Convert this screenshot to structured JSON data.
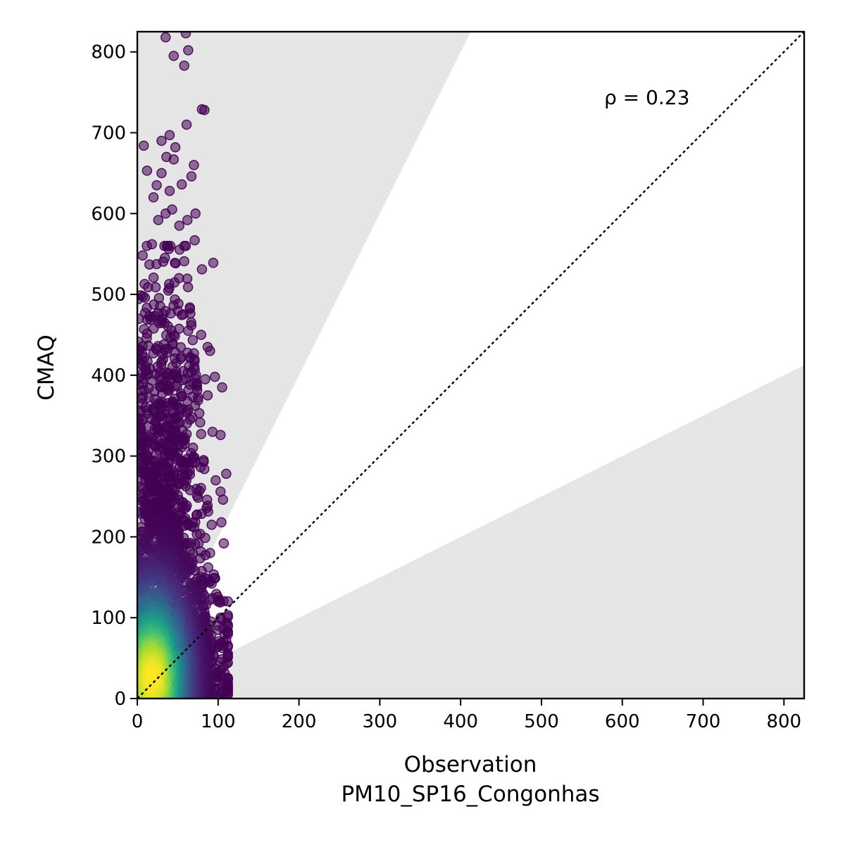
{
  "chart_data": {
    "type": "scatter",
    "xlabel": "Observation\nPM10_SP16_Congonhas",
    "xlabel_lines": [
      "Observation",
      "PM10_SP16_Congonhas"
    ],
    "ylabel": "CMAQ",
    "xlim": [
      0,
      825
    ],
    "ylim": [
      0,
      825
    ],
    "x_ticks": [
      0,
      100,
      200,
      300,
      400,
      500,
      600,
      700,
      800
    ],
    "y_ticks": [
      0,
      100,
      200,
      300,
      400,
      500,
      600,
      700,
      800
    ],
    "x_tick_labels": [
      "0",
      "100",
      "200",
      "300",
      "400",
      "500",
      "600",
      "700",
      "800"
    ],
    "y_tick_labels": [
      "0",
      "100",
      "200",
      "300",
      "400",
      "500",
      "600",
      "700",
      "800"
    ],
    "annotation": "ρ = 0.23",
    "grid": false,
    "colormap": "viridis",
    "reference_line": {
      "slope": 1,
      "style": "dotted",
      "color": "#000000"
    },
    "shaded_regions": [
      {
        "description": "model/observation > 2",
        "lower_slope": 2,
        "color": "#e5e5e5"
      },
      {
        "description": "model/observation < 0.5",
        "upper_slope": 0.5,
        "color": "#e5e5e5"
      }
    ],
    "outlier_points": [
      [
        35,
        818
      ],
      [
        60,
        823
      ],
      [
        63,
        802
      ],
      [
        45,
        795
      ],
      [
        58,
        783
      ],
      [
        80,
        729
      ],
      [
        83,
        728
      ],
      [
        61,
        710
      ],
      [
        8,
        684
      ],
      [
        47,
        682
      ],
      [
        30,
        690
      ],
      [
        40,
        697
      ],
      [
        36,
        670
      ],
      [
        45,
        667
      ],
      [
        70,
        660
      ],
      [
        12,
        653
      ],
      [
        30,
        650
      ],
      [
        24,
        635
      ],
      [
        20,
        620
      ],
      [
        67,
        646
      ],
      [
        55,
        636
      ],
      [
        40,
        628
      ],
      [
        26,
        592
      ],
      [
        35,
        600
      ],
      [
        43,
        605
      ],
      [
        52,
        585
      ],
      [
        62,
        592
      ],
      [
        72,
        600
      ],
      [
        18,
        562
      ],
      [
        60,
        560
      ],
      [
        71,
        567
      ],
      [
        80,
        531
      ],
      [
        94,
        539
      ],
      [
        15,
        537
      ],
      [
        58,
        541
      ],
      [
        79,
        450
      ],
      [
        87,
        435
      ],
      [
        90,
        430
      ],
      [
        96,
        398
      ],
      [
        105,
        385
      ],
      [
        84,
        395
      ],
      [
        87,
        375
      ],
      [
        103,
        326
      ],
      [
        93,
        330
      ],
      [
        97,
        270
      ],
      [
        103,
        256
      ],
      [
        110,
        278
      ],
      [
        106,
        246
      ],
      [
        92,
        215
      ],
      [
        104,
        218
      ],
      [
        107,
        192
      ],
      [
        90,
        180
      ],
      [
        95,
        149
      ],
      [
        100,
        120
      ],
      [
        103,
        100
      ],
      [
        108,
        80
      ],
      [
        110,
        72
      ],
      [
        107,
        40
      ],
      [
        112,
        17
      ],
      [
        105,
        7
      ]
    ],
    "dense_cluster": {
      "x_range": [
        0,
        112
      ],
      "y_range": [
        0,
        560
      ],
      "density_peak": [
        18,
        25
      ]
    }
  }
}
